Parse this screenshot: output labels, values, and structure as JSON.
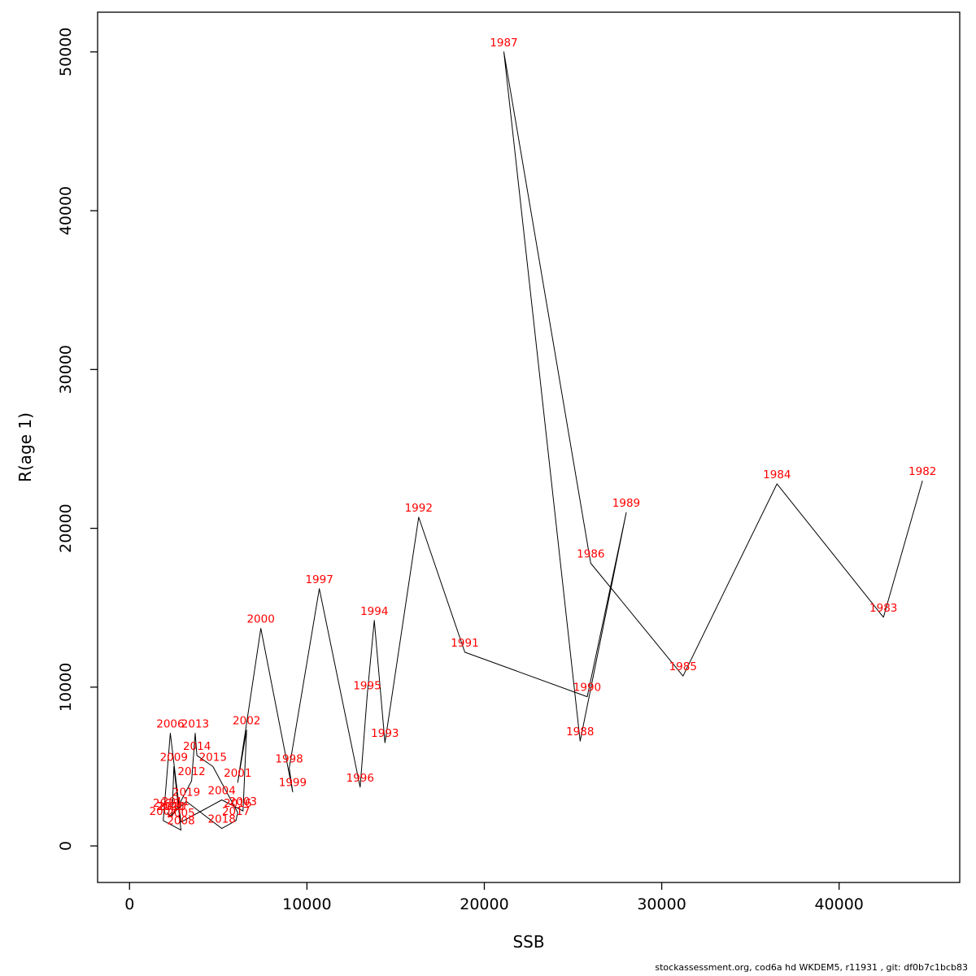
{
  "footer": {
    "credit": "stockassessment.org, cod6a hd WKDEM5, r11931 , git: df0b7c1bcb83"
  },
  "chart_data": {
    "type": "line",
    "title": "",
    "xlabel": "SSB",
    "ylabel": "R(age 1)",
    "legend": "none",
    "grid": false,
    "line_color": "#000000",
    "label_color": "#ff0000",
    "x_ticks": [
      0,
      10000,
      20000,
      30000,
      40000
    ],
    "y_ticks": [
      0,
      10000,
      20000,
      30000,
      40000,
      50000
    ],
    "xlim": [
      -1800,
      46800
    ],
    "ylim": [
      -2300,
      52500
    ],
    "points": [
      {
        "year": "1982",
        "ssb": 44700,
        "r": 23000
      },
      {
        "year": "1983",
        "ssb": 42500,
        "r": 14400
      },
      {
        "year": "1984",
        "ssb": 36500,
        "r": 22800
      },
      {
        "year": "1985",
        "ssb": 31200,
        "r": 10700
      },
      {
        "year": "1986",
        "ssb": 26000,
        "r": 17800
      },
      {
        "year": "1987",
        "ssb": 21100,
        "r": 50000
      },
      {
        "year": "1988",
        "ssb": 25400,
        "r": 6600
      },
      {
        "year": "1989",
        "ssb": 28000,
        "r": 21000
      },
      {
        "year": "1990",
        "ssb": 25800,
        "r": 9400
      },
      {
        "year": "1991",
        "ssb": 18900,
        "r": 12200
      },
      {
        "year": "1992",
        "ssb": 16300,
        "r": 20700
      },
      {
        "year": "1993",
        "ssb": 14400,
        "r": 6500
      },
      {
        "year": "1994",
        "ssb": 13800,
        "r": 14200
      },
      {
        "year": "1995",
        "ssb": 13400,
        "r": 9500
      },
      {
        "year": "1996",
        "ssb": 13000,
        "r": 3700
      },
      {
        "year": "1997",
        "ssb": 10700,
        "r": 16200
      },
      {
        "year": "1998",
        "ssb": 9000,
        "r": 4900
      },
      {
        "year": "1999",
        "ssb": 9200,
        "r": 3400
      },
      {
        "year": "2000",
        "ssb": 7400,
        "r": 13700
      },
      {
        "year": "2001",
        "ssb": 6100,
        "r": 4000
      },
      {
        "year": "2002",
        "ssb": 6600,
        "r": 7300
      },
      {
        "year": "2003",
        "ssb": 6400,
        "r": 2200
      },
      {
        "year": "2004",
        "ssb": 5200,
        "r": 2900
      },
      {
        "year": "2005",
        "ssb": 2900,
        "r": 1500
      },
      {
        "year": "2006",
        "ssb": 2300,
        "r": 7100
      },
      {
        "year": "2007",
        "ssb": 1900,
        "r": 1600
      },
      {
        "year": "2008",
        "ssb": 2900,
        "r": 1000
      },
      {
        "year": "2009",
        "ssb": 2500,
        "r": 5000
      },
      {
        "year": "2010",
        "ssb": 2400,
        "r": 1900
      },
      {
        "year": "2011",
        "ssb": 2600,
        "r": 2200
      },
      {
        "year": "2012",
        "ssb": 3500,
        "r": 4100
      },
      {
        "year": "2013",
        "ssb": 3700,
        "r": 7100
      },
      {
        "year": "2014",
        "ssb": 3800,
        "r": 5700
      },
      {
        "year": "2015",
        "ssb": 4700,
        "r": 5000
      },
      {
        "year": "2016",
        "ssb": 6100,
        "r": 2100
      },
      {
        "year": "2017",
        "ssb": 6000,
        "r": 1600
      },
      {
        "year": "2018",
        "ssb": 5200,
        "r": 1100
      },
      {
        "year": "2019",
        "ssb": 3200,
        "r": 2800
      },
      {
        "year": "2020",
        "ssb": 2300,
        "r": 1900
      },
      {
        "year": "2021",
        "ssb": 2100,
        "r": 2100
      }
    ]
  }
}
